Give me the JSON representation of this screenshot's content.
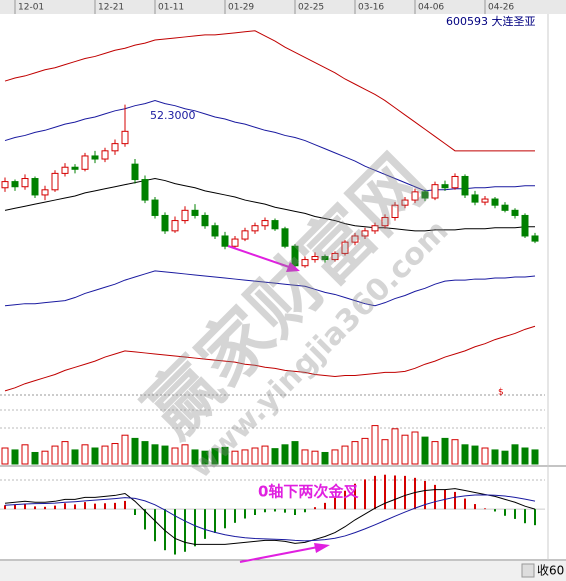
{
  "chart_data": [
    {
      "type": "candlestick",
      "title": "600593 大连圣亚",
      "annotation": "52.3000",
      "categories": [
        null,
        "12-01",
        null,
        null,
        null,
        null,
        null,
        null,
        null,
        "12-21",
        null,
        null,
        null,
        null,
        null,
        "01-11",
        null,
        null,
        null,
        null,
        null,
        null,
        "01-29",
        null,
        null,
        null,
        null,
        null,
        null,
        "02-25",
        null,
        null,
        null,
        null,
        null,
        "03-16",
        null,
        null,
        null,
        null,
        null,
        "04-06",
        null,
        null,
        null,
        null,
        null,
        null,
        "04-26",
        null,
        null,
        null,
        null,
        null
      ],
      "open": [
        44.2,
        44.8,
        44.3,
        45.1,
        43.5,
        44.0,
        45.6,
        46.2,
        46.0,
        47.3,
        47.0,
        47.8,
        48.5,
        46.5,
        45.0,
        43.0,
        41.5,
        40.0,
        41.0,
        42.0,
        41.5,
        40.5,
        39.5,
        38.5,
        39.2,
        40.0,
        40.5,
        41.0,
        40.2,
        38.5,
        36.6,
        37.2,
        37.5,
        37.2,
        37.8,
        38.9,
        39.5,
        40.0,
        40.5,
        41.3,
        42.5,
        43.0,
        43.8,
        43.2,
        44.5,
        44.2,
        45.3,
        43.5,
        42.8,
        43.1,
        42.5,
        42.0,
        41.5,
        39.5
      ],
      "high": [
        45.2,
        45.0,
        45.5,
        45.3,
        44.4,
        45.9,
        46.6,
        46.5,
        47.6,
        47.8,
        48.1,
        48.9,
        52.3,
        47.0,
        45.4,
        43.3,
        41.8,
        41.4,
        42.4,
        42.6,
        41.8,
        40.8,
        39.9,
        39.5,
        40.3,
        40.8,
        41.3,
        41.2,
        40.4,
        38.7,
        37.5,
        37.9,
        37.7,
        38.0,
        39.1,
        39.8,
        40.3,
        40.8,
        41.6,
        42.8,
        43.3,
        44.1,
        44.0,
        44.8,
        44.9,
        45.6,
        45.5,
        43.9,
        43.4,
        43.3,
        42.8,
        42.2,
        41.7,
        39.8
      ],
      "low": [
        43.8,
        43.9,
        44.0,
        43.2,
        43.0,
        43.8,
        45.3,
        45.6,
        45.8,
        46.6,
        46.7,
        47.4,
        48.2,
        44.6,
        42.7,
        41.2,
        39.7,
        39.8,
        40.7,
        41.2,
        40.2,
        39.2,
        38.2,
        38.3,
        39.0,
        39.7,
        40.1,
        40.0,
        38.3,
        36.4,
        36.4,
        36.9,
        36.9,
        37.0,
        37.6,
        38.6,
        39.2,
        39.7,
        40.2,
        41.0,
        42.2,
        42.7,
        42.9,
        43.0,
        43.9,
        44.0,
        43.2,
        42.5,
        42.5,
        42.2,
        41.8,
        41.2,
        39.3,
        38.8
      ],
      "close": [
        44.8,
        44.3,
        45.1,
        43.5,
        44.0,
        45.6,
        46.2,
        46.0,
        47.3,
        47.0,
        47.8,
        48.5,
        49.7,
        45.0,
        43.0,
        41.5,
        40.0,
        41.0,
        42.0,
        41.5,
        40.5,
        39.5,
        38.5,
        39.2,
        40.0,
        40.5,
        41.0,
        40.2,
        38.5,
        36.6,
        37.2,
        37.5,
        37.2,
        37.8,
        38.9,
        39.5,
        40.0,
        40.5,
        41.3,
        42.5,
        43.0,
        43.8,
        43.2,
        44.5,
        44.2,
        45.3,
        43.5,
        42.8,
        43.1,
        42.5,
        42.0,
        41.5,
        39.5,
        39.0
      ],
      "up_color": "#d40000",
      "down_color": "#008000",
      "series": [
        {
          "color": "#c00000",
          "values": [
            54.6,
            54.9,
            55.1,
            55.4,
            55.7,
            55.9,
            56.2,
            56.5,
            56.8,
            57.0,
            57.3,
            57.6,
            57.8,
            58.1,
            58.3,
            58.6,
            58.7,
            58.8,
            58.9,
            59.0,
            59.1,
            59.1,
            59.2,
            59.3,
            59.4,
            59.5,
            59.0,
            58.5,
            57.9,
            57.4,
            56.9,
            56.4,
            55.9,
            55.4,
            54.8,
            54.3,
            53.8,
            53.3,
            52.7,
            52.0,
            51.3,
            50.6,
            49.9,
            49.2,
            48.5,
            47.8,
            47.8,
            47.8,
            47.8,
            47.8,
            47.8,
            47.8,
            47.8,
            47.8
          ]
        },
        {
          "color": "#1a1aa0",
          "values": [
            48.8,
            49.1,
            49.3,
            49.6,
            49.8,
            50.1,
            50.4,
            50.6,
            50.9,
            51.1,
            51.4,
            51.7,
            51.9,
            52.2,
            52.4,
            52.7,
            52.4,
            52.2,
            51.9,
            51.7,
            51.4,
            51.1,
            50.9,
            50.6,
            50.4,
            50.1,
            49.8,
            49.6,
            49.3,
            49.1,
            48.8,
            48.4,
            48.0,
            47.6,
            47.2,
            46.8,
            46.3,
            45.9,
            45.5,
            45.1,
            44.7,
            44.3,
            43.9,
            44.0,
            44.0,
            44.1,
            44.1,
            44.2,
            44.2,
            44.3,
            44.3,
            44.3,
            44.4,
            44.4
          ]
        },
        {
          "color": "#000000",
          "values": [
            42.0,
            42.2,
            42.4,
            42.6,
            42.8,
            43.0,
            43.2,
            43.4,
            43.7,
            43.9,
            44.1,
            44.3,
            44.5,
            44.7,
            44.9,
            45.1,
            44.9,
            44.6,
            44.4,
            44.2,
            43.9,
            43.7,
            43.5,
            43.3,
            43.0,
            42.8,
            42.6,
            42.3,
            42.1,
            41.9,
            41.7,
            41.4,
            41.2,
            41.0,
            40.7,
            40.5,
            40.4,
            40.3,
            40.3,
            40.2,
            40.1,
            40.0,
            40.0,
            40.1,
            40.1,
            40.1,
            40.2,
            40.2,
            40.2,
            40.3,
            40.3,
            40.3,
            40.4,
            40.4
          ]
        },
        {
          "color": "#1a1aa0",
          "values": [
            32.7,
            32.8,
            32.9,
            32.9,
            33.0,
            33.1,
            33.2,
            33.5,
            33.9,
            34.2,
            34.5,
            34.8,
            35.2,
            35.5,
            35.8,
            36.1,
            36.0,
            35.9,
            35.8,
            35.7,
            35.6,
            35.5,
            35.4,
            35.3,
            35.2,
            35.1,
            35.0,
            34.9,
            34.8,
            34.7,
            34.6,
            34.3,
            34.0,
            33.8,
            33.5,
            33.2,
            32.9,
            32.7,
            33.0,
            33.4,
            33.7,
            34.1,
            34.4,
            34.8,
            35.1,
            35.2,
            35.2,
            35.3,
            35.3,
            35.4,
            35.4,
            35.5,
            35.5,
            35.6
          ]
        },
        {
          "color": "#c00000",
          "values": [
            24.4,
            24.7,
            25.1,
            25.4,
            25.7,
            26.0,
            26.4,
            26.7,
            27.0,
            27.3,
            27.7,
            28.0,
            28.3,
            28.2,
            28.1,
            28.0,
            27.9,
            27.8,
            27.7,
            27.6,
            27.5,
            27.4,
            27.3,
            27.2,
            27.0,
            26.9,
            26.7,
            26.6,
            26.4,
            26.3,
            26.2,
            26.0,
            25.9,
            25.8,
            25.9,
            25.9,
            26.0,
            26.1,
            26.2,
            26.2,
            26.3,
            26.6,
            27.0,
            27.3,
            27.7,
            28.0,
            28.3,
            28.7,
            29.0,
            29.4,
            29.7,
            30.0,
            30.4,
            30.7
          ]
        }
      ],
      "ylim": [
        24,
        62.5
      ]
    },
    {
      "type": "volume",
      "marker": "$",
      "values": [
        25,
        22,
        30,
        18,
        20,
        28,
        35,
        22,
        30,
        25,
        28,
        32,
        45,
        40,
        35,
        30,
        28,
        25,
        30,
        22,
        20,
        24,
        26,
        20,
        22,
        25,
        28,
        24,
        30,
        35,
        22,
        20,
        18,
        22,
        28,
        35,
        40,
        60,
        38,
        55,
        45,
        50,
        42,
        35,
        40,
        38,
        30,
        28,
        25,
        22,
        20,
        30,
        25,
        22
      ],
      "ylim": [
        0,
        100
      ]
    },
    {
      "type": "macd",
      "annotation": "0轴下两次金叉",
      "hist": [
        0.2,
        0.24,
        0.28,
        0.14,
        0.12,
        0.18,
        0.3,
        0.24,
        0.36,
        0.28,
        0.3,
        0.32,
        0.42,
        -0.3,
        -1.04,
        -1.64,
        -2.1,
        -2.32,
        -2.18,
        -1.9,
        -1.52,
        -1.22,
        -0.98,
        -0.7,
        -0.48,
        -0.3,
        -0.16,
        -0.12,
        -0.18,
        -0.3,
        -0.16,
        0.1,
        0.32,
        0.58,
        0.94,
        1.3,
        1.52,
        1.7,
        1.76,
        1.72,
        1.7,
        1.6,
        1.44,
        1.24,
        1.0,
        0.88,
        0.54,
        0.26,
        0.04,
        -0.12,
        -0.34,
        -0.5,
        -0.72,
        -0.82
      ],
      "series": [
        {
          "color": "#000000",
          "values": [
            0.3,
            0.35,
            0.4,
            0.35,
            0.35,
            0.4,
            0.5,
            0.5,
            0.6,
            0.6,
            0.65,
            0.7,
            0.8,
            0.4,
            -0.1,
            -0.6,
            -1.1,
            -1.5,
            -1.7,
            -1.8,
            -1.8,
            -1.8,
            -1.8,
            -1.75,
            -1.7,
            -1.65,
            -1.6,
            -1.6,
            -1.65,
            -1.75,
            -1.7,
            -1.55,
            -1.4,
            -1.2,
            -0.9,
            -0.55,
            -0.25,
            0.05,
            0.3,
            0.5,
            0.7,
            0.85,
            0.95,
            1.0,
            1.0,
            1.05,
            0.95,
            0.85,
            0.75,
            0.65,
            0.5,
            0.35,
            0.15,
            0.0
          ]
        },
        {
          "color": "#1a1aa0",
          "values": [
            0.2,
            0.23,
            0.26,
            0.28,
            0.29,
            0.31,
            0.35,
            0.38,
            0.42,
            0.46,
            0.5,
            0.54,
            0.59,
            0.55,
            0.42,
            0.22,
            -0.05,
            -0.34,
            -0.61,
            -0.85,
            -1.04,
            -1.19,
            -1.31,
            -1.4,
            -1.46,
            -1.5,
            -1.52,
            -1.54,
            -1.56,
            -1.6,
            -1.62,
            -1.6,
            -1.56,
            -1.49,
            -1.37,
            -1.2,
            -1.01,
            -0.8,
            -0.58,
            -0.36,
            -0.15,
            0.05,
            0.23,
            0.38,
            0.5,
            0.61,
            0.68,
            0.72,
            0.73,
            0.71,
            0.67,
            0.6,
            0.51,
            0.41
          ]
        }
      ],
      "ylim": [
        -2.6,
        2.0
      ]
    }
  ],
  "watermark": [
    "赢家财富网",
    "www.yingjia360.com"
  ],
  "status": "收60"
}
